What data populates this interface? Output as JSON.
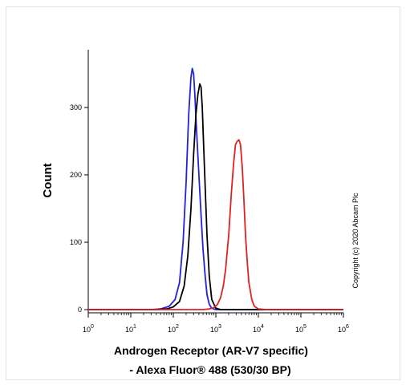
{
  "chart_data": {
    "type": "line",
    "xlabel_line1": "Androgen Receptor (AR-V7 specific)",
    "xlabel_line2": "- Alexa Fluor® 488 (530/30 BP)",
    "ylabel": "Count",
    "copyright": "Copyright (c) 2020 Abcam Plc",
    "xscale": "log",
    "xlim": [
      1,
      1000000
    ],
    "ylim": [
      0,
      360
    ],
    "grid": false,
    "x_ticks": [
      {
        "value": 1,
        "base": "10",
        "exp": "0"
      },
      {
        "value": 10,
        "base": "10",
        "exp": "1"
      },
      {
        "value": 100,
        "base": "10",
        "exp": "2"
      },
      {
        "value": 1000,
        "base": "10",
        "exp": "3"
      },
      {
        "value": 10000,
        "base": "10",
        "exp": "4"
      },
      {
        "value": 100000,
        "base": "10",
        "exp": "5"
      },
      {
        "value": 1000000,
        "base": "10",
        "exp": "6"
      }
    ],
    "y_ticks": [
      "0",
      "100",
      "200",
      "300"
    ],
    "series": [
      {
        "color": "#2222dd",
        "x": [
          1,
          30,
          50,
          80,
          110,
          140,
          170,
          200,
          230,
          260,
          280,
          300,
          320,
          350,
          400,
          450,
          500,
          560,
          620,
          700,
          800,
          1000,
          1300,
          1000000
        ],
        "y": [
          0,
          0,
          1,
          5,
          15,
          40,
          100,
          190,
          290,
          345,
          358,
          350,
          320,
          270,
          200,
          140,
          90,
          50,
          22,
          8,
          2,
          0,
          0,
          0
        ]
      },
      {
        "color": "#000000",
        "x": [
          1,
          40,
          70,
          100,
          140,
          180,
          220,
          260,
          300,
          340,
          380,
          420,
          450,
          480,
          520,
          570,
          620,
          700,
          800,
          1000,
          1300,
          1000000
        ],
        "y": [
          0,
          0,
          1,
          4,
          12,
          35,
          80,
          150,
          230,
          290,
          320,
          335,
          330,
          300,
          240,
          170,
          110,
          50,
          15,
          2,
          0,
          0
        ]
      },
      {
        "color": "#dd2222",
        "x": [
          1,
          500,
          700,
          900,
          1100,
          1300,
          1500,
          1700,
          2000,
          2300,
          2600,
          2900,
          3200,
          3500,
          3800,
          4200,
          4600,
          5000,
          5500,
          6000,
          7000,
          8000,
          10000,
          15000,
          1000000
        ],
        "y": [
          0,
          0,
          1,
          3,
          8,
          18,
          35,
          60,
          110,
          170,
          215,
          245,
          250,
          252,
          245,
          210,
          160,
          110,
          70,
          40,
          15,
          5,
          1,
          0,
          0
        ]
      }
    ]
  }
}
